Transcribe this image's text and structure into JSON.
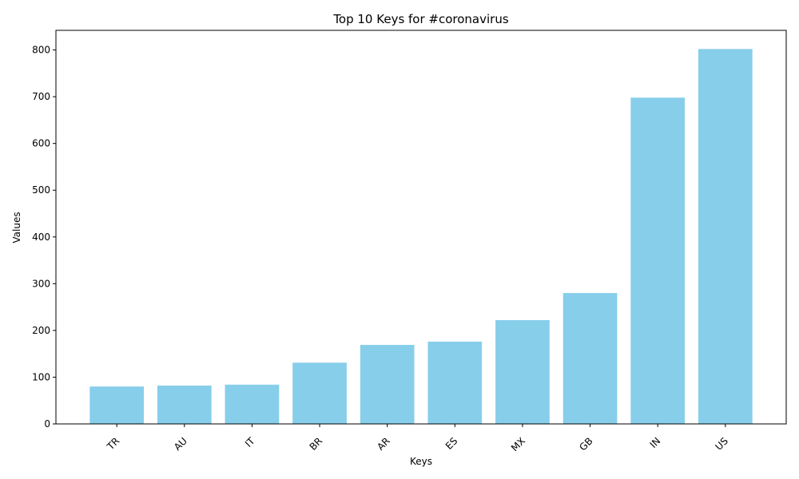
{
  "chart_data": {
    "type": "bar",
    "title": "Top 10 Keys for #coronavirus",
    "xlabel": "Keys",
    "ylabel": "Values",
    "categories": [
      "TR",
      "AU",
      "IT",
      "BR",
      "AR",
      "ES",
      "MX",
      "GB",
      "IN",
      "US"
    ],
    "values": [
      80,
      82,
      84,
      131,
      169,
      176,
      222,
      280,
      698,
      802
    ],
    "ylim": [
      0,
      842
    ],
    "yticks": [
      0,
      100,
      200,
      300,
      400,
      500,
      600,
      700,
      800
    ],
    "bar_color": "#87ceeb",
    "grid": false,
    "xtick_rotation": 45
  }
}
